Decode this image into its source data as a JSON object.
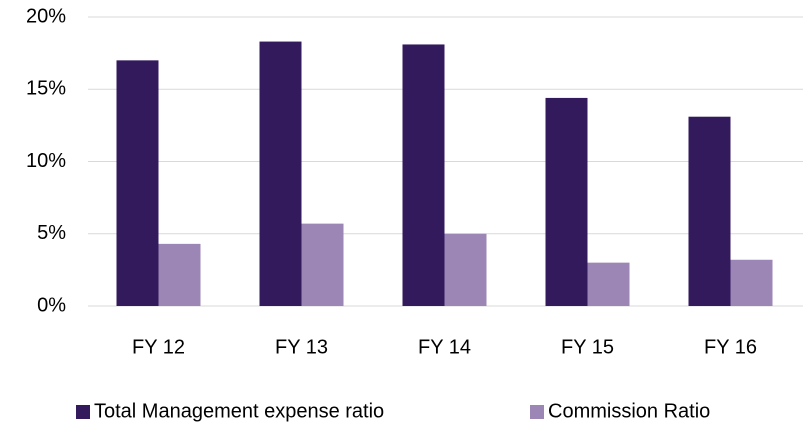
{
  "chart_data": {
    "type": "bar",
    "categories": [
      "FY 12",
      "FY 13",
      "FY 14",
      "FY 15",
      "FY 16"
    ],
    "series": [
      {
        "name": "Total Management expense ratio",
        "color": "#331a5c",
        "values": [
          17.0,
          18.3,
          18.1,
          14.4,
          13.1
        ]
      },
      {
        "name": "Commission Ratio",
        "color": "#9b86b6",
        "values": [
          4.3,
          5.7,
          5.0,
          3.0,
          3.2
        ]
      }
    ],
    "ylim": [
      0,
      20
    ],
    "yticks": [
      {
        "value": 0,
        "label": "0%"
      },
      {
        "value": 5,
        "label": "5%"
      },
      {
        "value": 10,
        "label": "10%"
      },
      {
        "value": 15,
        "label": "15%"
      },
      {
        "value": 20,
        "label": "20%"
      }
    ],
    "grid": true,
    "legend": "bottom"
  }
}
